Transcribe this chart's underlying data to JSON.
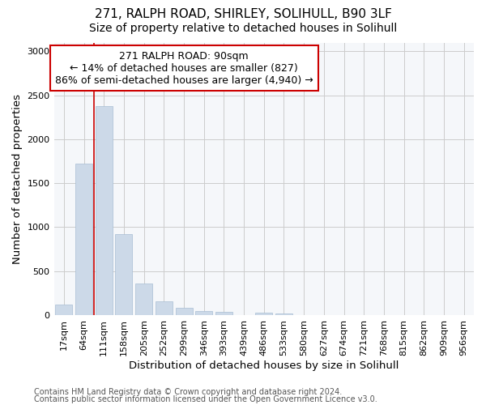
{
  "title_line1": "271, RALPH ROAD, SHIRLEY, SOLIHULL, B90 3LF",
  "title_line2": "Size of property relative to detached houses in Solihull",
  "xlabel": "Distribution of detached houses by size in Solihull",
  "ylabel": "Number of detached properties",
  "footer_line1": "Contains HM Land Registry data © Crown copyright and database right 2024.",
  "footer_line2": "Contains public sector information licensed under the Open Government Licence v3.0.",
  "categories": [
    "17sqm",
    "64sqm",
    "111sqm",
    "158sqm",
    "205sqm",
    "252sqm",
    "299sqm",
    "346sqm",
    "393sqm",
    "439sqm",
    "486sqm",
    "533sqm",
    "580sqm",
    "627sqm",
    "674sqm",
    "721sqm",
    "768sqm",
    "815sqm",
    "862sqm",
    "909sqm",
    "956sqm"
  ],
  "values": [
    115,
    1720,
    2380,
    920,
    355,
    155,
    80,
    50,
    35,
    0,
    30,
    20,
    0,
    0,
    0,
    0,
    0,
    0,
    0,
    0,
    0
  ],
  "bar_color": "#ccd9e8",
  "bar_edge_color": "#a8bed4",
  "red_line_x": 1.5,
  "red_line_color": "#cc0000",
  "annotation_text": "271 RALPH ROAD: 90sqm\n← 14% of detached houses are smaller (827)\n86% of semi-detached houses are larger (4,940) →",
  "annotation_box_color": "#ffffff",
  "annotation_box_edge_color": "#cc0000",
  "ylim": [
    0,
    3100
  ],
  "yticks": [
    0,
    500,
    1000,
    1500,
    2000,
    2500,
    3000
  ],
  "grid_color": "#cccccc",
  "background_color": "#ffffff",
  "plot_bg_color": "#f5f7fa",
  "title_fontsize": 11,
  "subtitle_fontsize": 10,
  "axis_label_fontsize": 9.5,
  "tick_fontsize": 8,
  "footer_fontsize": 7,
  "annotation_fontsize": 9
}
